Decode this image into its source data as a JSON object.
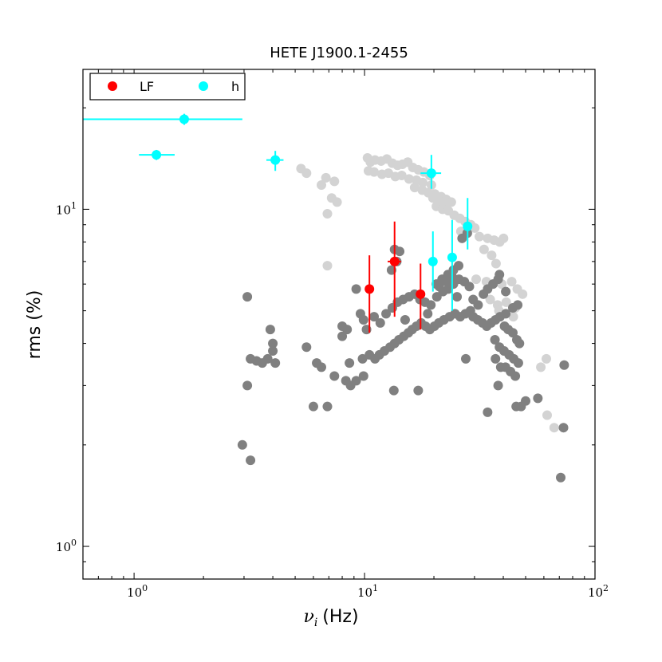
{
  "chart_data": {
    "type": "scatter",
    "title": "HETE J1900.1-2455",
    "xlabel": "ν_i (Hz)",
    "xlabel_symbol": "ν",
    "xlabel_sub": "i",
    "xlabel_unit": "(Hz)",
    "ylabel": "rms (%)",
    "xscale": "log",
    "yscale": "log",
    "xlim": [
      0.6,
      100
    ],
    "ylim": [
      0.8,
      26
    ],
    "x_ticks": [
      {
        "value": 1,
        "base": "10",
        "exp": "0"
      },
      {
        "value": 10,
        "base": "10",
        "exp": "1"
      },
      {
        "value": 100,
        "base": "10",
        "exp": "2"
      }
    ],
    "y_ticks": [
      {
        "value": 1,
        "base": "10",
        "exp": "0"
      },
      {
        "value": 10,
        "base": "10",
        "exp": "1"
      }
    ],
    "grid": false,
    "legend": {
      "placement": "top-left",
      "entries": [
        {
          "label": "LF",
          "color": "#ff0000"
        },
        {
          "label": "h",
          "color": "#00ffff"
        }
      ]
    },
    "series": [
      {
        "color": "#d3d3d3",
        "points": [
          [
            5.3,
            13.2
          ],
          [
            5.6,
            12.8
          ],
          [
            6.5,
            11.8
          ],
          [
            6.8,
            12.4
          ],
          [
            7.4,
            12.1
          ],
          [
            7.2,
            10.8
          ],
          [
            7.6,
            10.5
          ],
          [
            6.9,
            9.7
          ],
          [
            6.9,
            6.8
          ],
          [
            10.3,
            14.2
          ],
          [
            10.6,
            13.8
          ],
          [
            11.1,
            14.0
          ],
          [
            11.8,
            13.9
          ],
          [
            12.5,
            14.1
          ],
          [
            13.2,
            13.7
          ],
          [
            13.9,
            13.5
          ],
          [
            14.6,
            13.6
          ],
          [
            15.4,
            13.8
          ],
          [
            16.2,
            13.3
          ],
          [
            17.1,
            13.1
          ],
          [
            18.1,
            12.9
          ],
          [
            19.2,
            12.6
          ],
          [
            10.4,
            13.0
          ],
          [
            11.0,
            12.9
          ],
          [
            11.9,
            12.7
          ],
          [
            12.7,
            12.8
          ],
          [
            13.6,
            12.5
          ],
          [
            14.5,
            12.6
          ],
          [
            15.6,
            12.3
          ],
          [
            16.8,
            12.2
          ],
          [
            17.9,
            12.0
          ],
          [
            19.5,
            11.8
          ],
          [
            16.5,
            11.6
          ],
          [
            17.8,
            11.4
          ],
          [
            18.9,
            11.2
          ],
          [
            20.2,
            11.1
          ],
          [
            21.5,
            10.9
          ],
          [
            22.6,
            10.7
          ],
          [
            23.8,
            10.5
          ],
          [
            19.8,
            10.8
          ],
          [
            21.0,
            10.6
          ],
          [
            22.3,
            10.4
          ],
          [
            20.5,
            10.2
          ],
          [
            21.8,
            10.0
          ],
          [
            23.1,
            9.9
          ],
          [
            24.5,
            9.6
          ],
          [
            25.9,
            9.4
          ],
          [
            27.3,
            9.2
          ],
          [
            28.9,
            9.0
          ],
          [
            30.1,
            8.8
          ],
          [
            26.2,
            8.6
          ],
          [
            28.0,
            8.5
          ],
          [
            31.5,
            8.3
          ],
          [
            34.2,
            8.2
          ],
          [
            36.5,
            8.1
          ],
          [
            38.6,
            8.0
          ],
          [
            33.0,
            7.6
          ],
          [
            35.6,
            7.3
          ],
          [
            40.1,
            8.2
          ],
          [
            37.2,
            6.9
          ],
          [
            30.5,
            6.2
          ],
          [
            33.8,
            6.1
          ],
          [
            39.4,
            6.0
          ],
          [
            43.5,
            6.1
          ],
          [
            46.0,
            5.8
          ],
          [
            48.5,
            5.6
          ],
          [
            35.1,
            5.4
          ],
          [
            37.8,
            5.2
          ],
          [
            41.2,
            5.3
          ],
          [
            45.1,
            5.1
          ],
          [
            38.3,
            5.0
          ],
          [
            44.2,
            4.8
          ],
          [
            61.5,
            3.6
          ],
          [
            58.2,
            3.4
          ],
          [
            62.0,
            2.45
          ],
          [
            66.5,
            2.25
          ]
        ]
      },
      {
        "color": "#808080",
        "points": [
          [
            3.1,
            5.5
          ],
          [
            3.2,
            3.6
          ],
          [
            3.4,
            3.55
          ],
          [
            3.6,
            3.5
          ],
          [
            3.1,
            3.0
          ],
          [
            2.95,
            2.0
          ],
          [
            3.2,
            1.8
          ],
          [
            3.9,
            4.4
          ],
          [
            4.0,
            4.0
          ],
          [
            4.0,
            3.8
          ],
          [
            3.8,
            3.6
          ],
          [
            4.1,
            3.5
          ],
          [
            5.6,
            3.9
          ],
          [
            6.2,
            3.5
          ],
          [
            6.5,
            3.4
          ],
          [
            6.0,
            2.6
          ],
          [
            6.9,
            2.6
          ],
          [
            7.4,
            3.2
          ],
          [
            8.0,
            4.5
          ],
          [
            8.4,
            4.4
          ],
          [
            8.0,
            4.2
          ],
          [
            8.6,
            3.5
          ],
          [
            8.3,
            3.1
          ],
          [
            8.7,
            3.0
          ],
          [
            9.2,
            3.1
          ],
          [
            9.9,
            3.2
          ],
          [
            9.8,
            3.6
          ],
          [
            10.5,
            3.7
          ],
          [
            11.1,
            3.6
          ],
          [
            11.6,
            3.7
          ],
          [
            12.2,
            3.8
          ],
          [
            12.9,
            3.9
          ],
          [
            13.5,
            4.0
          ],
          [
            14.1,
            4.1
          ],
          [
            14.8,
            4.2
          ],
          [
            15.5,
            4.3
          ],
          [
            16.1,
            4.4
          ],
          [
            16.8,
            4.5
          ],
          [
            17.6,
            4.6
          ],
          [
            18.4,
            4.5
          ],
          [
            19.2,
            4.4
          ],
          [
            20.1,
            4.5
          ],
          [
            21.0,
            4.6
          ],
          [
            22.1,
            4.7
          ],
          [
            23.4,
            4.8
          ],
          [
            24.7,
            4.9
          ],
          [
            26.0,
            4.8
          ],
          [
            27.4,
            4.9
          ],
          [
            28.8,
            5.0
          ],
          [
            29.6,
            4.8
          ],
          [
            31.0,
            4.7
          ],
          [
            32.5,
            4.6
          ],
          [
            33.9,
            4.5
          ],
          [
            35.4,
            4.6
          ],
          [
            37.0,
            4.7
          ],
          [
            38.7,
            4.8
          ],
          [
            40.5,
            4.5
          ],
          [
            42.0,
            4.4
          ],
          [
            44.0,
            4.3
          ],
          [
            45.8,
            4.1
          ],
          [
            47.0,
            4.0
          ],
          [
            9.2,
            5.8
          ],
          [
            9.6,
            4.9
          ],
          [
            9.9,
            4.7
          ],
          [
            10.2,
            4.4
          ],
          [
            11.0,
            4.8
          ],
          [
            11.7,
            4.6
          ],
          [
            12.4,
            4.9
          ],
          [
            13.2,
            5.1
          ],
          [
            13.9,
            5.3
          ],
          [
            14.7,
            5.4
          ],
          [
            15.6,
            5.5
          ],
          [
            16.5,
            5.6
          ],
          [
            17.4,
            5.4
          ],
          [
            18.3,
            5.3
          ],
          [
            19.4,
            5.2
          ],
          [
            20.6,
            5.5
          ],
          [
            21.9,
            5.7
          ],
          [
            23.1,
            5.8
          ],
          [
            24.3,
            6.0
          ],
          [
            25.7,
            6.2
          ],
          [
            27.1,
            6.1
          ],
          [
            28.5,
            5.9
          ],
          [
            20.5,
            6.0
          ],
          [
            21.7,
            6.2
          ],
          [
            23.0,
            6.4
          ],
          [
            24.3,
            6.6
          ],
          [
            25.6,
            6.8
          ],
          [
            13.1,
            6.6
          ],
          [
            13.8,
            7.0
          ],
          [
            14.2,
            7.5
          ],
          [
            13.5,
            7.6
          ],
          [
            21.1,
            5.9
          ],
          [
            22.7,
            6.1
          ],
          [
            24.0,
            6.3
          ],
          [
            25.2,
            5.5
          ],
          [
            26.5,
            8.2
          ],
          [
            27.9,
            8.5
          ],
          [
            29.6,
            5.4
          ],
          [
            31.1,
            5.2
          ],
          [
            32.8,
            5.6
          ],
          [
            34.2,
            5.8
          ],
          [
            36.1,
            6.0
          ],
          [
            38.0,
            6.2
          ],
          [
            36.8,
            4.1
          ],
          [
            38.5,
            3.9
          ],
          [
            40.3,
            3.8
          ],
          [
            42.4,
            3.7
          ],
          [
            44.4,
            3.6
          ],
          [
            46.5,
            3.5
          ],
          [
            40.9,
            3.4
          ],
          [
            43.0,
            3.3
          ],
          [
            45.1,
            3.2
          ],
          [
            37.0,
            3.6
          ],
          [
            39.0,
            3.4
          ],
          [
            13.4,
            2.9
          ],
          [
            17.1,
            2.9
          ],
          [
            27.5,
            3.6
          ],
          [
            34.2,
            2.5
          ],
          [
            38.0,
            3.0
          ],
          [
            41.0,
            4.9
          ],
          [
            44.0,
            5.1
          ],
          [
            46.2,
            5.2
          ],
          [
            38.5,
            6.4
          ],
          [
            41.0,
            5.7
          ],
          [
            45.5,
            2.6
          ],
          [
            47.8,
            2.6
          ],
          [
            50.0,
            2.7
          ],
          [
            56.5,
            2.75
          ],
          [
            73.5,
            3.45
          ],
          [
            73.0,
            2.25
          ],
          [
            71.0,
            1.6
          ],
          [
            18.8,
            4.9
          ],
          [
            15.0,
            4.7
          ]
        ]
      },
      {
        "color": "#ff0000",
        "points": [
          {
            "x": 10.5,
            "y": 5.8,
            "yerr": [
              4.3,
              7.3
            ],
            "xerr": null
          },
          {
            "x": 13.5,
            "y": 7.0,
            "yerr": [
              4.8,
              9.2
            ],
            "xerr": [
              12.6,
              14.4
            ]
          },
          {
            "x": 17.5,
            "y": 5.6,
            "yerr": [
              4.4,
              6.9
            ],
            "xerr": [
              16.7,
              18.3
            ]
          }
        ]
      },
      {
        "name": "h",
        "color": "#00ffff",
        "points": [
          {
            "x": 1.65,
            "y": 18.5,
            "xerr": [
              0.6,
              2.95
            ],
            "yerr": [
              17.8,
              19.2
            ]
          },
          {
            "x": 1.25,
            "y": 14.5,
            "xerr": [
              1.05,
              1.5
            ],
            "yerr": [
              14.0,
              15.0
            ]
          },
          {
            "x": 4.1,
            "y": 14.0,
            "xerr": [
              3.75,
              4.45
            ],
            "yerr": [
              13.0,
              14.9
            ]
          },
          {
            "x": 19.5,
            "y": 12.8,
            "xerr": [
              17.5,
              21.5
            ],
            "yerr": [
              11.5,
              14.5
            ]
          },
          {
            "x": 19.8,
            "y": 7.0,
            "xerr": null,
            "yerr": [
              5.7,
              8.6
            ]
          },
          {
            "x": 24.0,
            "y": 7.2,
            "xerr": null,
            "yerr": [
              5.0,
              9.3
            ]
          },
          {
            "x": 28.0,
            "y": 8.9,
            "xerr": [
              27.0,
              29.0
            ],
            "yerr": [
              7.6,
              10.8
            ]
          }
        ]
      }
    ]
  }
}
